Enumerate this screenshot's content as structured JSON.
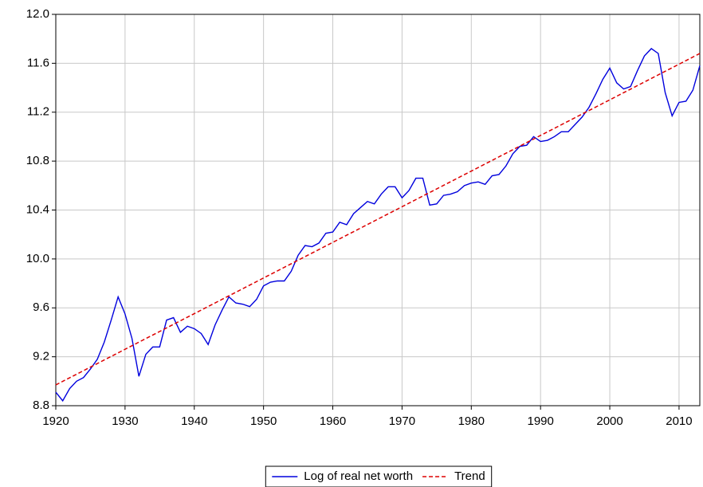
{
  "chart_data": {
    "type": "line",
    "x": [
      1920,
      1921,
      1922,
      1923,
      1924,
      1925,
      1926,
      1927,
      1928,
      1929,
      1930,
      1931,
      1932,
      1933,
      1934,
      1935,
      1936,
      1937,
      1938,
      1939,
      1940,
      1941,
      1942,
      1943,
      1944,
      1945,
      1946,
      1947,
      1948,
      1949,
      1950,
      1951,
      1952,
      1953,
      1954,
      1955,
      1956,
      1957,
      1958,
      1959,
      1960,
      1961,
      1962,
      1963,
      1964,
      1965,
      1966,
      1967,
      1968,
      1969,
      1970,
      1971,
      1972,
      1973,
      1974,
      1975,
      1976,
      1977,
      1978,
      1979,
      1980,
      1981,
      1982,
      1983,
      1984,
      1985,
      1986,
      1987,
      1988,
      1989,
      1990,
      1991,
      1992,
      1993,
      1994,
      1995,
      1996,
      1997,
      1998,
      1999,
      2000,
      2001,
      2002,
      2003,
      2004,
      2005,
      2006,
      2007,
      2008,
      2009,
      2010,
      2011,
      2012,
      2013
    ],
    "series": [
      {
        "name": "Log of real net worth",
        "color": "#0000dd",
        "dash": false,
        "values": [
          8.91,
          8.84,
          8.94,
          9.0,
          9.03,
          9.1,
          9.18,
          9.32,
          9.5,
          9.69,
          9.55,
          9.35,
          9.04,
          9.22,
          9.28,
          9.28,
          9.5,
          9.52,
          9.4,
          9.45,
          9.43,
          9.39,
          9.3,
          9.46,
          9.58,
          9.69,
          9.64,
          9.63,
          9.61,
          9.67,
          9.78,
          9.81,
          9.82,
          9.82,
          9.9,
          10.03,
          10.11,
          10.1,
          10.13,
          10.21,
          10.22,
          10.3,
          10.28,
          10.37,
          10.42,
          10.47,
          10.45,
          10.53,
          10.59,
          10.59,
          10.5,
          10.56,
          10.66,
          10.66,
          10.44,
          10.45,
          10.52,
          10.53,
          10.55,
          10.6,
          10.62,
          10.63,
          10.61,
          10.68,
          10.69,
          10.76,
          10.86,
          10.92,
          10.93,
          11.0,
          10.96,
          10.97,
          11.0,
          11.04,
          11.04,
          11.1,
          11.16,
          11.24,
          11.35,
          11.47,
          11.56,
          11.44,
          11.39,
          11.41,
          11.54,
          11.66,
          11.72,
          11.68,
          11.36,
          11.17,
          11.28,
          11.29,
          11.38,
          11.58
        ]
      },
      {
        "name": "Trend",
        "color": "#dd0000",
        "dash": true,
        "x": [
          1920,
          2013
        ],
        "values": [
          8.97,
          11.68
        ]
      }
    ],
    "xlim": [
      1920,
      2013
    ],
    "xticks": [
      1920,
      1930,
      1940,
      1950,
      1960,
      1970,
      1980,
      1990,
      2000,
      2010
    ],
    "ylim": [
      8.8,
      12.0
    ],
    "yticks": [
      8.8,
      9.2,
      9.6,
      {
        "value": 10,
        "label": "10.0"
      },
      10.4,
      10.8,
      11.2,
      11.6,
      {
        "value": 12,
        "label": "12.0"
      }
    ],
    "grid": true,
    "legend": "bottom"
  }
}
